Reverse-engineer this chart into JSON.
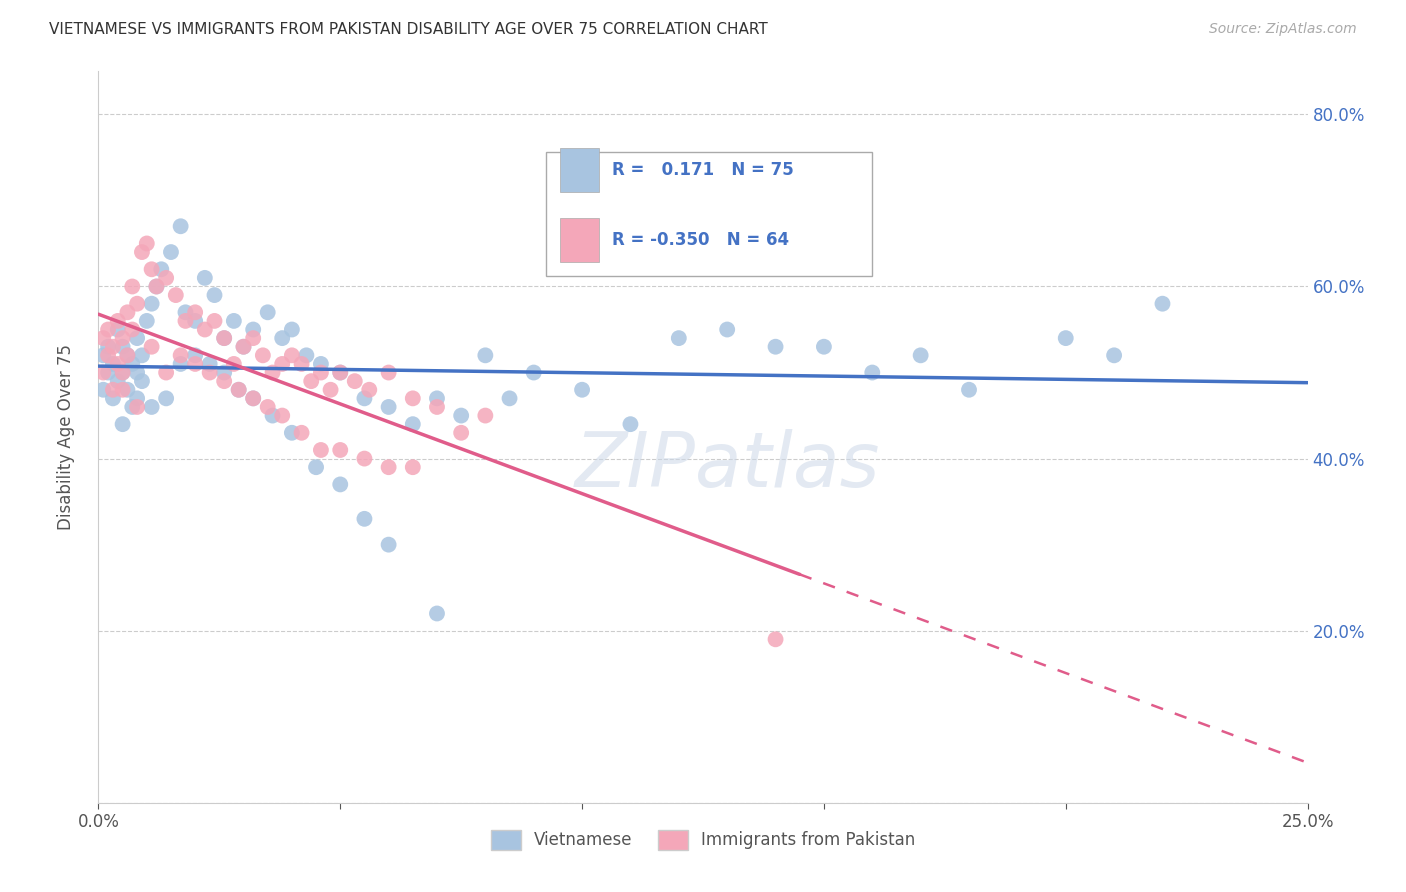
{
  "title": "VIETNAMESE VS IMMIGRANTS FROM PAKISTAN DISABILITY AGE OVER 75 CORRELATION CHART",
  "source": "Source: ZipAtlas.com",
  "ylabel": "Disability Age Over 75",
  "x_min": 0.0,
  "x_max": 0.25,
  "y_min": 0.0,
  "y_max": 0.85,
  "x_tick_positions": [
    0.0,
    0.05,
    0.1,
    0.15,
    0.2,
    0.25
  ],
  "x_tick_labels": [
    "0.0%",
    "",
    "",
    "",
    "",
    "25.0%"
  ],
  "y_tick_positions": [
    0.0,
    0.2,
    0.4,
    0.6,
    0.8
  ],
  "y_tick_labels_right": [
    "",
    "20.0%",
    "40.0%",
    "60.0%",
    "80.0%"
  ],
  "viet_color": "#a8c4e0",
  "pak_color": "#f4a7b9",
  "viet_line_color": "#4472C4",
  "pak_line_color": "#E05C8A",
  "R_viet": 0.171,
  "N_viet": 75,
  "R_pak": -0.35,
  "N_pak": 64,
  "viet_x": [
    0.001,
    0.001,
    0.002,
    0.002,
    0.003,
    0.003,
    0.004,
    0.004,
    0.005,
    0.005,
    0.006,
    0.006,
    0.007,
    0.007,
    0.008,
    0.008,
    0.009,
    0.009,
    0.01,
    0.011,
    0.012,
    0.013,
    0.015,
    0.017,
    0.018,
    0.02,
    0.022,
    0.024,
    0.026,
    0.028,
    0.03,
    0.032,
    0.035,
    0.038,
    0.04,
    0.043,
    0.046,
    0.05,
    0.055,
    0.06,
    0.065,
    0.07,
    0.075,
    0.08,
    0.085,
    0.09,
    0.1,
    0.11,
    0.12,
    0.13,
    0.14,
    0.15,
    0.16,
    0.17,
    0.18,
    0.2,
    0.21,
    0.22,
    0.005,
    0.008,
    0.011,
    0.014,
    0.017,
    0.02,
    0.023,
    0.026,
    0.029,
    0.032,
    0.036,
    0.04,
    0.045,
    0.05,
    0.055,
    0.06,
    0.07
  ],
  "viet_y": [
    0.48,
    0.52,
    0.5,
    0.53,
    0.51,
    0.47,
    0.49,
    0.55,
    0.5,
    0.53,
    0.48,
    0.52,
    0.51,
    0.46,
    0.5,
    0.54,
    0.49,
    0.52,
    0.56,
    0.58,
    0.6,
    0.62,
    0.64,
    0.67,
    0.57,
    0.56,
    0.61,
    0.59,
    0.54,
    0.56,
    0.53,
    0.55,
    0.57,
    0.54,
    0.55,
    0.52,
    0.51,
    0.5,
    0.47,
    0.46,
    0.44,
    0.47,
    0.45,
    0.52,
    0.47,
    0.5,
    0.48,
    0.44,
    0.54,
    0.55,
    0.53,
    0.53,
    0.5,
    0.52,
    0.48,
    0.54,
    0.52,
    0.58,
    0.44,
    0.47,
    0.46,
    0.47,
    0.51,
    0.52,
    0.51,
    0.5,
    0.48,
    0.47,
    0.45,
    0.43,
    0.39,
    0.37,
    0.33,
    0.3,
    0.22
  ],
  "pak_x": [
    0.001,
    0.001,
    0.002,
    0.002,
    0.003,
    0.003,
    0.004,
    0.004,
    0.005,
    0.005,
    0.006,
    0.006,
    0.007,
    0.007,
    0.008,
    0.009,
    0.01,
    0.011,
    0.012,
    0.014,
    0.016,
    0.018,
    0.02,
    0.022,
    0.024,
    0.026,
    0.028,
    0.03,
    0.032,
    0.034,
    0.036,
    0.038,
    0.04,
    0.042,
    0.044,
    0.046,
    0.048,
    0.05,
    0.053,
    0.056,
    0.06,
    0.065,
    0.07,
    0.075,
    0.08,
    0.005,
    0.008,
    0.011,
    0.014,
    0.017,
    0.02,
    0.023,
    0.026,
    0.029,
    0.032,
    0.035,
    0.038,
    0.042,
    0.046,
    0.05,
    0.055,
    0.06,
    0.065,
    0.14
  ],
  "pak_y": [
    0.5,
    0.54,
    0.52,
    0.55,
    0.53,
    0.48,
    0.51,
    0.56,
    0.54,
    0.5,
    0.52,
    0.57,
    0.55,
    0.6,
    0.58,
    0.64,
    0.65,
    0.62,
    0.6,
    0.61,
    0.59,
    0.56,
    0.57,
    0.55,
    0.56,
    0.54,
    0.51,
    0.53,
    0.54,
    0.52,
    0.5,
    0.51,
    0.52,
    0.51,
    0.49,
    0.5,
    0.48,
    0.5,
    0.49,
    0.48,
    0.5,
    0.47,
    0.46,
    0.43,
    0.45,
    0.48,
    0.46,
    0.53,
    0.5,
    0.52,
    0.51,
    0.5,
    0.49,
    0.48,
    0.47,
    0.46,
    0.45,
    0.43,
    0.41,
    0.41,
    0.4,
    0.39,
    0.39,
    0.19
  ],
  "watermark": "ZIPatlas",
  "background_color": "#ffffff",
  "grid_color": "#cccccc"
}
